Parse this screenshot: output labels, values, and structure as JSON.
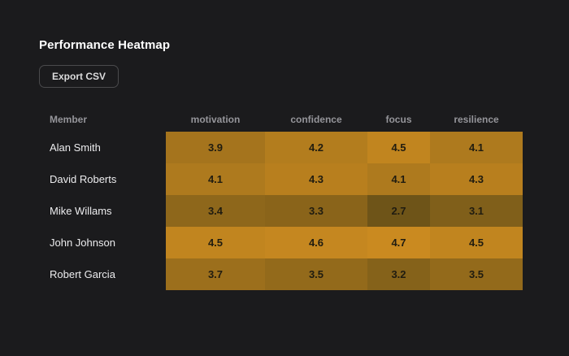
{
  "page": {
    "background_color": "#1b1b1d"
  },
  "header": {
    "title": "Performance Heatmap"
  },
  "toolbar": {
    "export_label": "Export CSV"
  },
  "chart_data": {
    "type": "heatmap",
    "title": "Performance Heatmap",
    "row_header": "Member",
    "columns": [
      "motivation",
      "confidence",
      "focus",
      "resilience"
    ],
    "rows": [
      "Alan Smith",
      "David Roberts",
      "Mike Willams",
      "John Johnson",
      "Robert Garcia"
    ],
    "values": [
      [
        3.9,
        4.2,
        4.5,
        4.1
      ],
      [
        4.1,
        4.3,
        4.1,
        4.3
      ],
      [
        3.4,
        3.3,
        2.7,
        3.1
      ],
      [
        4.5,
        4.6,
        4.7,
        4.5
      ],
      [
        3.7,
        3.5,
        3.2,
        3.5
      ]
    ],
    "scale": {
      "min": 2.7,
      "max": 4.7,
      "low_color": "#6e5418",
      "high_color": "#ca8a20"
    },
    "value_text_color": "#201c10",
    "legend": "none",
    "grid": "off"
  }
}
